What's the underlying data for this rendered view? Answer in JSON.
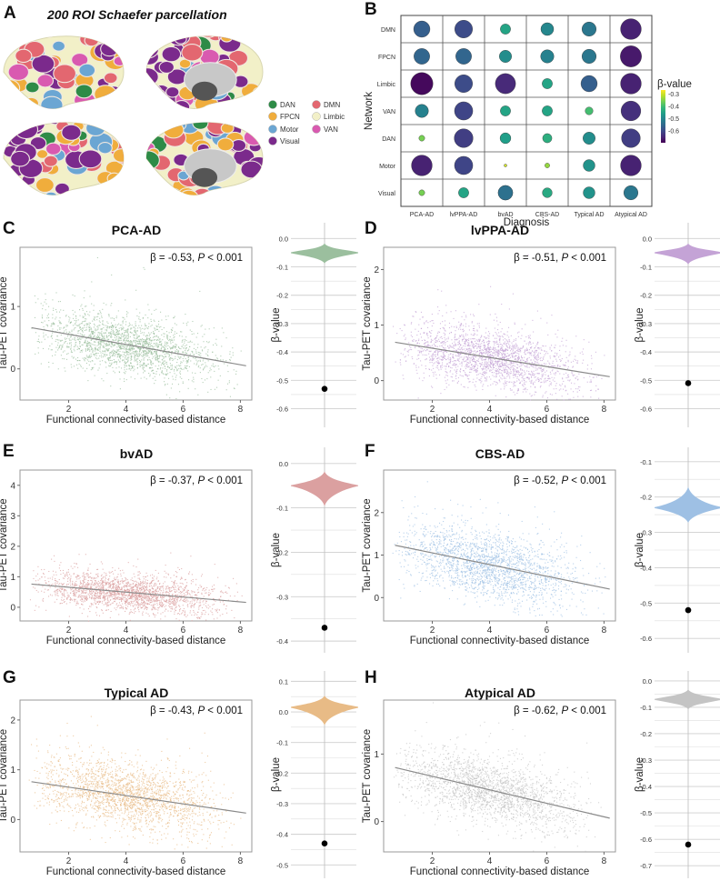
{
  "panel_a": {
    "label": "A",
    "title": "200 ROI Schaefer parcellation",
    "legend": [
      {
        "name": "DAN",
        "color": "#2e8b47"
      },
      {
        "name": "FPCN",
        "color": "#f0ad3c"
      },
      {
        "name": "Motor",
        "color": "#6ba6d3"
      },
      {
        "name": "Visual",
        "color": "#7b2a8c"
      },
      {
        "name": "DMN",
        "color": "#e36770"
      },
      {
        "name": "Limbic",
        "color": "#f2f0c8"
      },
      {
        "name": "VAN",
        "color": "#d95ab0"
      }
    ]
  },
  "chart_data": [
    {
      "id": "B",
      "label": "B",
      "type": "heatmap",
      "title": "",
      "xlabel": "Diagnosis",
      "ylabel": "Network",
      "categories_x": [
        "PCA-AD",
        "lvPPA-AD",
        "bvAD",
        "CBS-AD",
        "Typical AD",
        "Atypical AD"
      ],
      "categories_y": [
        "DMN",
        "FPCN",
        "Limbic",
        "VAN",
        "DAN",
        "Motor",
        "Visual"
      ],
      "values": [
        [
          -0.57,
          -0.6,
          -0.45,
          -0.5,
          -0.53,
          -0.66
        ],
        [
          -0.56,
          -0.56,
          -0.49,
          -0.51,
          -0.53,
          -0.67
        ],
        [
          -0.69,
          -0.6,
          -0.65,
          -0.45,
          -0.57,
          -0.66
        ],
        [
          -0.51,
          -0.61,
          -0.45,
          -0.45,
          -0.4,
          -0.64
        ],
        [
          -0.36,
          -0.62,
          -0.46,
          -0.43,
          -0.49,
          -0.62
        ],
        [
          -0.66,
          -0.61,
          -0.3,
          -0.34,
          -0.48,
          -0.66
        ],
        [
          -0.36,
          -0.45,
          -0.54,
          -0.44,
          -0.48,
          -0.53
        ]
      ],
      "encoding": "circle size and color = β-value (more negative = larger, darker)",
      "colorbar": {
        "title": "β-value",
        "ticks": [
          -0.3,
          -0.4,
          -0.5,
          -0.6
        ],
        "range": [
          -0.7,
          -0.27
        ],
        "colormap": "viridis"
      }
    },
    {
      "id": "C",
      "label": "C",
      "type": "scatter",
      "title": "PCA-AD",
      "xlabel": "Functional connectivity-based distance",
      "ylabel": "Tau-PET covariance",
      "xlim": [
        0.3,
        8.4
      ],
      "ylim": [
        -0.5,
        1.95
      ],
      "xticks": [
        2,
        4,
        6,
        8
      ],
      "yticks": [
        0,
        1
      ],
      "color": "#9bbf9e",
      "annotation": {
        "beta": "-0.53",
        "p": "0.001"
      },
      "fit_line": {
        "x": [
          0.7,
          8.2
        ],
        "y": [
          0.66,
          0.05
        ]
      },
      "cloud": {
        "x_center": 4.0,
        "y_at_center": 0.35,
        "x_spread": 1.6,
        "y_spread": 0.22
      }
    },
    {
      "id": "C-violin",
      "type": "violin",
      "ylabel": "β-value",
      "ylim": [
        -0.64,
        0.03
      ],
      "yticks": [
        0.0,
        -0.1,
        -0.2,
        -0.3,
        -0.4,
        -0.5,
        -0.6
      ],
      "color": "#9bbf9e",
      "null_center": -0.05,
      "null_min": -0.085,
      "null_max": -0.02,
      "observed": -0.53
    },
    {
      "id": "D",
      "label": "D",
      "type": "scatter",
      "title": "lvPPA-AD",
      "xlabel": "Functional connectivity-based distance",
      "ylabel": "Tau-PET covariance",
      "xlim": [
        0.3,
        8.4
      ],
      "ylim": [
        -0.35,
        2.4
      ],
      "xticks": [
        2,
        4,
        6,
        8
      ],
      "yticks": [
        0,
        1,
        2
      ],
      "color": "#c4a3d6",
      "annotation": {
        "beta": "-0.51",
        "p": "0.001"
      },
      "fit_line": {
        "x": [
          0.7,
          8.2
        ],
        "y": [
          0.69,
          0.07
        ]
      },
      "cloud": {
        "x_center": 4.0,
        "y_at_center": 0.36,
        "x_spread": 1.6,
        "y_spread": 0.25
      }
    },
    {
      "id": "D-violin",
      "type": "violin",
      "ylabel": "β-value",
      "ylim": [
        -0.64,
        0.03
      ],
      "yticks": [
        0.0,
        -0.1,
        -0.2,
        -0.3,
        -0.4,
        -0.5,
        -0.6
      ],
      "color": "#c4a3d6",
      "null_center": -0.05,
      "null_min": -0.088,
      "null_max": -0.02,
      "observed": -0.51
    },
    {
      "id": "E",
      "label": "E",
      "type": "scatter",
      "title": "bvAD",
      "xlabel": "Functional connectivity-based distance",
      "ylabel": "Tau-PET covariance",
      "xlim": [
        0.3,
        8.4
      ],
      "ylim": [
        -0.45,
        4.5
      ],
      "xticks": [
        2,
        4,
        6,
        8
      ],
      "yticks": [
        0,
        1,
        2,
        3,
        4
      ],
      "color": "#dba0a0",
      "annotation": {
        "beta": "-0.37",
        "p": "0.001"
      },
      "fit_line": {
        "x": [
          0.7,
          8.2
        ],
        "y": [
          0.76,
          0.16
        ]
      },
      "cloud": {
        "x_center": 4.0,
        "y_at_center": 0.45,
        "x_spread": 1.6,
        "y_spread": 0.28
      }
    },
    {
      "id": "E-violin",
      "type": "violin",
      "ylabel": "β-value",
      "ylim": [
        -0.41,
        0.02
      ],
      "yticks": [
        0.0,
        -0.1,
        -0.2,
        -0.3,
        -0.4
      ],
      "color": "#dba0a0",
      "null_center": -0.05,
      "null_min": -0.093,
      "null_max": -0.02,
      "observed": -0.37
    },
    {
      "id": "F",
      "label": "F",
      "type": "scatter",
      "title": "CBS-AD",
      "xlabel": "Functional connectivity-based distance",
      "ylabel": "Tau-PET covariance",
      "xlim": [
        0.3,
        8.4
      ],
      "ylim": [
        -0.55,
        3.0
      ],
      "xticks": [
        2,
        4,
        6,
        8
      ],
      "yticks": [
        0,
        1,
        2
      ],
      "color": "#9ec0e4",
      "annotation": {
        "beta": "-0.52",
        "p": "0.001"
      },
      "fit_line": {
        "x": [
          0.7,
          8.2
        ],
        "y": [
          1.23,
          0.2
        ]
      },
      "cloud": {
        "x_center": 4.0,
        "y_at_center": 0.72,
        "x_spread": 1.6,
        "y_spread": 0.38
      }
    },
    {
      "id": "F-violin",
      "type": "violin",
      "ylabel": "β-value",
      "ylim": [
        -0.62,
        -0.08
      ],
      "yticks": [
        -0.1,
        -0.2,
        -0.3,
        -0.4,
        -0.5,
        -0.6
      ],
      "color": "#9ec0e4",
      "null_center": -0.23,
      "null_min": -0.27,
      "null_max": -0.175,
      "observed": -0.52
    },
    {
      "id": "G",
      "label": "G",
      "type": "scatter",
      "title": "Typical AD",
      "xlabel": "Functional connectivity-based distance",
      "ylabel": "Tau-PET covariance",
      "xlim": [
        0.3,
        8.4
      ],
      "ylim": [
        -0.65,
        2.4
      ],
      "xticks": [
        2,
        4,
        6,
        8
      ],
      "yticks": [
        0,
        1,
        2
      ],
      "color": "#e8bb86",
      "annotation": {
        "beta": "-0.43",
        "p": "0.001"
      },
      "fit_line": {
        "x": [
          0.7,
          8.2
        ],
        "y": [
          0.76,
          0.13
        ]
      },
      "cloud": {
        "x_center": 4.0,
        "y_at_center": 0.45,
        "x_spread": 1.6,
        "y_spread": 0.3
      }
    },
    {
      "id": "G-violin",
      "type": "violin",
      "ylabel": "β-value",
      "ylim": [
        -0.52,
        0.11
      ],
      "yticks": [
        0.1,
        0.0,
        -0.1,
        -0.2,
        -0.3,
        -0.4,
        -0.5
      ],
      "color": "#e8bb86",
      "null_center": 0.015,
      "null_min": -0.04,
      "null_max": 0.05,
      "observed": -0.43
    },
    {
      "id": "H",
      "label": "H",
      "type": "scatter",
      "title": "Atypical AD",
      "xlabel": "Functional connectivity-based distance",
      "ylabel": "Tau-PET covariance",
      "xlim": [
        0.3,
        8.4
      ],
      "ylim": [
        -0.45,
        1.8
      ],
      "xticks": [
        2,
        4,
        6,
        8
      ],
      "yticks": [
        0,
        1
      ],
      "color": "#c4c4c4",
      "annotation": {
        "beta": "-0.62",
        "p": "0.001"
      },
      "fit_line": {
        "x": [
          0.7,
          8.2
        ],
        "y": [
          0.8,
          0.05
        ]
      },
      "cloud": {
        "x_center": 4.0,
        "y_at_center": 0.45,
        "x_spread": 1.6,
        "y_spread": 0.22
      }
    },
    {
      "id": "H-violin",
      "type": "violin",
      "ylabel": "β-value",
      "ylim": [
        -0.72,
        0.01
      ],
      "yticks": [
        0.0,
        -0.1,
        -0.2,
        -0.3,
        -0.4,
        -0.5,
        -0.6,
        -0.7
      ],
      "color": "#c4c4c4",
      "null_center": -0.07,
      "null_min": -0.105,
      "null_max": -0.035,
      "observed": -0.62
    }
  ]
}
